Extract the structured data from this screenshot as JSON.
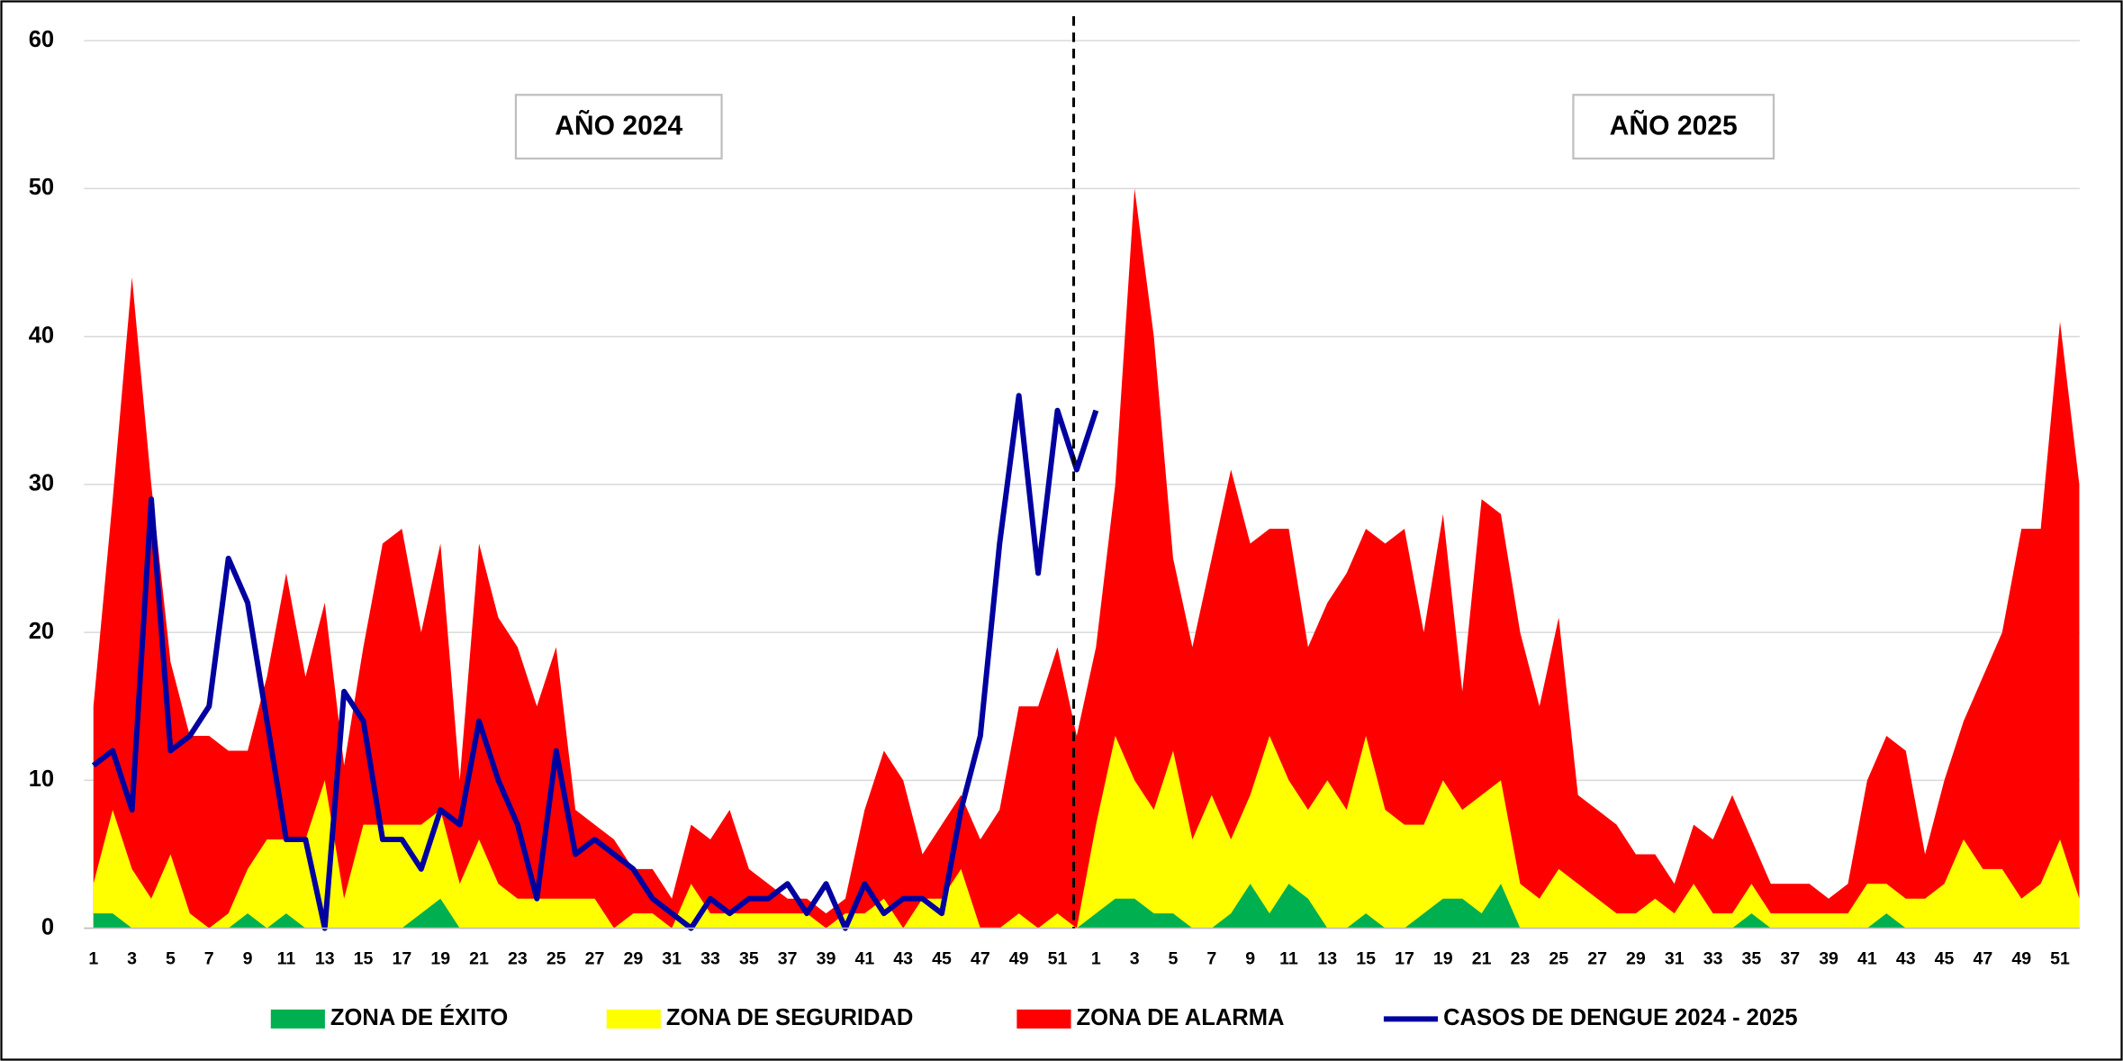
{
  "chart_data": {
    "type": "area",
    "categories": [
      "1",
      null,
      "3",
      null,
      "5",
      null,
      "7",
      null,
      "9",
      null,
      "11",
      null,
      "13",
      null,
      "15",
      null,
      "17",
      null,
      "19",
      null,
      "21",
      null,
      "23",
      null,
      "25",
      null,
      "27",
      null,
      "29",
      null,
      "31",
      null,
      "33",
      null,
      "35",
      null,
      "37",
      null,
      "39",
      null,
      "41",
      null,
      "43",
      null,
      "45",
      null,
      "47",
      null,
      "49",
      null,
      "51",
      null,
      "1",
      null,
      "3",
      null,
      "5",
      null,
      "7",
      null,
      "9",
      null,
      "11",
      null,
      "13",
      null,
      "15",
      null,
      "17",
      null,
      "19",
      null,
      "21",
      null,
      "23",
      null,
      "25",
      null,
      "27",
      null,
      "29",
      null,
      "31",
      null,
      "33",
      null,
      "35",
      null,
      "37",
      null,
      "39",
      null,
      "41",
      null,
      "43",
      null,
      "45",
      null,
      "47",
      null,
      "49",
      null,
      "51",
      null
    ],
    "series": [
      {
        "name": "ZONA DE ÉXITO",
        "type": "area",
        "color": "#00b050",
        "values": [
          1,
          1,
          0,
          0,
          0,
          0,
          0,
          0,
          1,
          0,
          1,
          0,
          0,
          0,
          0,
          0,
          0,
          1,
          2,
          0,
          0,
          0,
          0,
          0,
          0,
          0,
          0,
          0,
          0,
          0,
          0,
          0,
          0,
          0,
          0,
          0,
          0,
          0,
          0,
          0,
          0,
          0,
          0,
          0,
          0,
          0,
          0,
          0,
          0,
          0,
          0,
          0,
          1,
          2,
          2,
          1,
          1,
          0,
          0,
          1,
          3,
          1,
          3,
          2,
          0,
          0,
          1,
          0,
          0,
          1,
          2,
          2,
          1,
          3,
          0,
          0,
          0,
          0,
          0,
          0,
          0,
          0,
          0,
          0,
          0,
          0,
          1,
          0,
          0,
          0,
          0,
          0,
          0,
          1,
          0,
          0,
          0,
          0,
          0,
          0,
          0,
          0,
          0,
          0
        ]
      },
      {
        "name": "ZONA DE SEGURIDAD",
        "type": "area",
        "color": "#ffff00",
        "values": [
          3,
          8,
          4,
          2,
          5,
          1,
          0,
          1,
          4,
          6,
          6,
          6,
          10,
          2,
          7,
          7,
          7,
          7,
          8,
          3,
          6,
          3,
          2,
          2,
          2,
          2,
          2,
          0,
          1,
          1,
          0,
          3,
          1,
          1,
          1,
          1,
          1,
          1,
          0,
          1,
          1,
          2,
          0,
          2,
          2,
          4,
          0,
          0,
          1,
          0,
          1,
          0,
          7,
          13,
          10,
          8,
          12,
          6,
          9,
          6,
          9,
          13,
          10,
          8,
          10,
          8,
          13,
          8,
          7,
          7,
          10,
          8,
          9,
          10,
          3,
          2,
          4,
          3,
          2,
          1,
          1,
          2,
          1,
          3,
          1,
          1,
          3,
          1,
          1,
          1,
          1,
          1,
          3,
          3,
          2,
          2,
          3,
          6,
          4,
          4,
          2,
          3,
          6,
          2
        ]
      },
      {
        "name": "ZONA DE ALARMA",
        "type": "area",
        "color": "#ff0000",
        "values": [
          15,
          29,
          44,
          30,
          18,
          13,
          13,
          12,
          12,
          17,
          24,
          17,
          22,
          11,
          19,
          26,
          27,
          20,
          26,
          10,
          26,
          21,
          19,
          15,
          19,
          8,
          7,
          6,
          4,
          4,
          2,
          7,
          6,
          8,
          4,
          3,
          2,
          2,
          1,
          2,
          8,
          12,
          10,
          5,
          7,
          9,
          6,
          8,
          15,
          15,
          19,
          13,
          19,
          30,
          50,
          40,
          25,
          19,
          25,
          31,
          26,
          27,
          27,
          19,
          22,
          24,
          27,
          26,
          27,
          20,
          28,
          16,
          29,
          28,
          20,
          15,
          21,
          9,
          8,
          7,
          5,
          5,
          3,
          7,
          6,
          9,
          6,
          3,
          3,
          3,
          2,
          3,
          10,
          13,
          12,
          5,
          10,
          14,
          17,
          20,
          27,
          27,
          41,
          30
        ]
      },
      {
        "name": "CASOS DE DENGUE 2024 - 2025",
        "type": "line",
        "color": "#0000a0",
        "values": [
          11,
          12,
          8,
          29,
          12,
          13,
          15,
          25,
          22,
          14,
          6,
          6,
          0,
          16,
          14,
          6,
          6,
          4,
          8,
          7,
          14,
          10,
          7,
          2,
          12,
          5,
          6,
          5,
          4,
          2,
          1,
          0,
          2,
          1,
          2,
          2,
          3,
          1,
          3,
          0,
          3,
          1,
          2,
          2,
          1,
          8,
          13,
          26,
          36,
          24,
          35,
          31,
          35,
          null,
          null,
          null,
          null,
          null,
          null,
          null,
          null,
          null,
          null,
          null,
          null,
          null,
          null,
          null,
          null,
          null,
          null,
          null,
          null,
          null,
          null,
          null,
          null,
          null,
          null,
          null,
          null,
          null,
          null,
          null,
          null,
          null,
          null,
          null,
          null,
          null,
          null,
          null,
          null,
          null,
          null,
          null,
          null,
          null,
          null,
          null,
          null,
          null,
          null,
          null
        ]
      }
    ],
    "annotations": [
      "AÑO 2024",
      "AÑO 2025"
    ],
    "ylim": [
      0,
      60
    ],
    "yticks": [
      0,
      10,
      20,
      30,
      40,
      50,
      60
    ],
    "grid": true,
    "legend": "bottom"
  }
}
